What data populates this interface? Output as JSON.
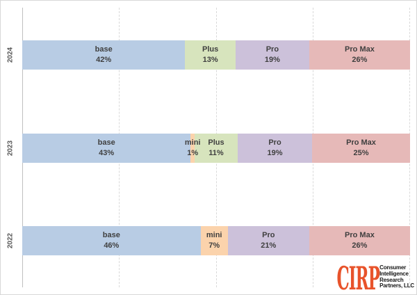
{
  "chart_data": {
    "type": "bar",
    "orientation": "horizontal",
    "stacked": true,
    "percent_stacked": true,
    "title": "",
    "xlabel": "",
    "ylabel": "",
    "xlim": [
      0,
      100
    ],
    "gridlines": [
      25,
      50,
      75,
      100
    ],
    "grid_style": "dashed-vertical",
    "legend": false,
    "categories": [
      "2024",
      "2023",
      "2022"
    ],
    "series": [
      {
        "name": "base",
        "values": [
          42,
          43,
          46
        ]
      },
      {
        "name": "mini",
        "values": [
          null,
          1,
          7
        ]
      },
      {
        "name": "Plus",
        "values": [
          13,
          11,
          null
        ]
      },
      {
        "name": "Pro",
        "values": [
          19,
          19,
          21
        ]
      },
      {
        "name": "Pro Max",
        "values": [
          26,
          25,
          26
        ]
      }
    ],
    "colors": {
      "base": "#b8cce4",
      "mini": "#fbd3ac",
      "Plus": "#d7e4bd",
      "Pro": "#ccc1da",
      "Pro Max": "#e6b9b8"
    },
    "label_format": "{name}\n{value}%"
  },
  "logo": {
    "brand": "CIRP",
    "brand_color": "#e8532b",
    "lines": [
      "Consumer",
      "Intelligence",
      "Research",
      "Partners, LLC"
    ]
  }
}
